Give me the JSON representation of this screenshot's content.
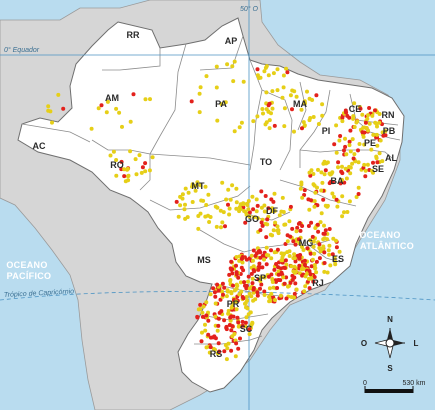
{
  "colors": {
    "ocean": "#b9dcef",
    "neighbor_land": "#d6d6d6",
    "brazil_land": "#ffffff",
    "border": "#8c8c8c",
    "coast": "#6f6f6f",
    "lines": "#4b93c3",
    "dot_yellow": "#e6cf17",
    "dot_red": "#e3211c"
  },
  "labels": {
    "equator": "0° Equador",
    "meridian": "50° O",
    "tropic": "Trópico de Capricórnio",
    "atlantic_1": "OCEANO",
    "atlantic_2": "ATLÂNTICO",
    "pacific_1": "OCEANO",
    "pacific_2": "PACÍFICO"
  },
  "states": [
    "RR",
    "AP",
    "AM",
    "PA",
    "MA",
    "CE",
    "RN",
    "PB",
    "PE",
    "AL",
    "SE",
    "PI",
    "AC",
    "RO",
    "TO",
    "BA",
    "MT",
    "DF",
    "GO",
    "MG",
    "ES",
    "MS",
    "SP",
    "RJ",
    "PR",
    "SC",
    "RS"
  ],
  "compass": {
    "n": "N",
    "s": "S",
    "l": "L",
    "o": "O",
    "icon": "compass-rose-icon"
  },
  "scale": {
    "start": "0",
    "end": "530 km"
  }
}
